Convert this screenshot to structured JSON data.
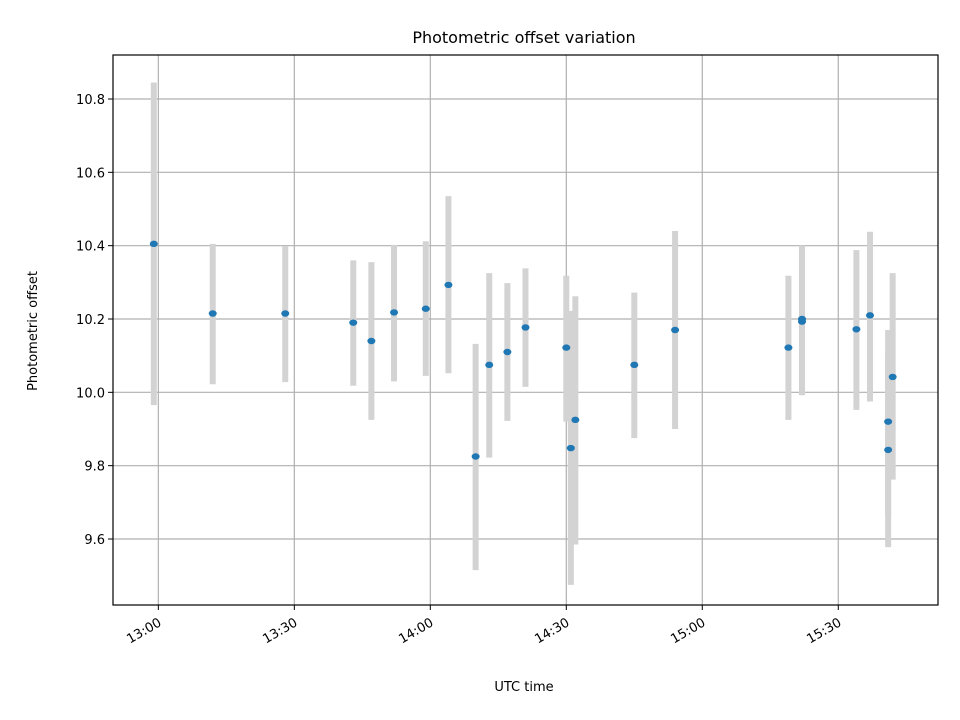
{
  "chart_data": {
    "type": "scatter",
    "title": "Photometric offset variation",
    "xlabel": "UTC time",
    "ylabel": "Photometric offset",
    "x_tick_labels": [
      "13:00",
      "13:30",
      "14:00",
      "14:30",
      "15:00",
      "15:30"
    ],
    "y_tick_labels": [
      "9.6",
      "9.8",
      "10.0",
      "10.2",
      "10.4",
      "10.6",
      "10.8"
    ],
    "xlim": [
      "12:50",
      "15:52"
    ],
    "ylim": [
      9.42,
      10.92
    ],
    "grid": true,
    "point_color": "#1f77b4",
    "errorbar_color": "#d3d3d3",
    "points": [
      {
        "t": "12:59",
        "y": 10.405,
        "ylo": 9.965,
        "yhi": 10.845
      },
      {
        "t": "13:12",
        "y": 10.215,
        "ylo": 10.022,
        "yhi": 10.405
      },
      {
        "t": "13:28",
        "y": 10.215,
        "ylo": 10.028,
        "yhi": 10.398
      },
      {
        "t": "13:43",
        "y": 10.19,
        "ylo": 10.018,
        "yhi": 10.36
      },
      {
        "t": "13:47",
        "y": 10.14,
        "ylo": 9.925,
        "yhi": 10.355
      },
      {
        "t": "13:52",
        "y": 10.218,
        "ylo": 10.03,
        "yhi": 10.402
      },
      {
        "t": "13:59",
        "y": 10.228,
        "ylo": 10.045,
        "yhi": 10.412
      },
      {
        "t": "14:04",
        "y": 10.293,
        "ylo": 10.052,
        "yhi": 10.535
      },
      {
        "t": "14:10",
        "y": 9.825,
        "ylo": 9.515,
        "yhi": 10.132
      },
      {
        "t": "14:13",
        "y": 10.075,
        "ylo": 9.822,
        "yhi": 10.325
      },
      {
        "t": "14:17",
        "y": 10.11,
        "ylo": 9.922,
        "yhi": 10.298
      },
      {
        "t": "14:21",
        "y": 10.177,
        "ylo": 10.015,
        "yhi": 10.338
      },
      {
        "t": "14:30",
        "y": 10.122,
        "ylo": 9.92,
        "yhi": 10.318
      },
      {
        "t": "14:31",
        "y": 9.848,
        "ylo": 9.475,
        "yhi": 10.222
      },
      {
        "t": "14:32",
        "y": 9.925,
        "ylo": 9.585,
        "yhi": 10.262
      },
      {
        "t": "14:45",
        "y": 10.075,
        "ylo": 9.875,
        "yhi": 10.272
      },
      {
        "t": "14:54",
        "y": 10.17,
        "ylo": 9.9,
        "yhi": 10.44
      },
      {
        "t": "15:19",
        "y": 10.122,
        "ylo": 9.925,
        "yhi": 10.318
      },
      {
        "t": "15:22",
        "y": 10.2,
        "ylo": 9.995,
        "yhi": 10.4
      },
      {
        "t": "15:22",
        "y": 10.193,
        "ylo": 9.992,
        "yhi": 10.392
      },
      {
        "t": "15:34",
        "y": 10.172,
        "ylo": 9.952,
        "yhi": 10.388
      },
      {
        "t": "15:37",
        "y": 10.21,
        "ylo": 9.975,
        "yhi": 10.438
      },
      {
        "t": "15:41",
        "y": 9.843,
        "ylo": 9.578,
        "yhi": 10.108
      },
      {
        "t": "15:41",
        "y": 9.92,
        "ylo": 9.665,
        "yhi": 10.17
      },
      {
        "t": "15:42",
        "y": 10.042,
        "ylo": 9.762,
        "yhi": 10.325
      }
    ]
  }
}
